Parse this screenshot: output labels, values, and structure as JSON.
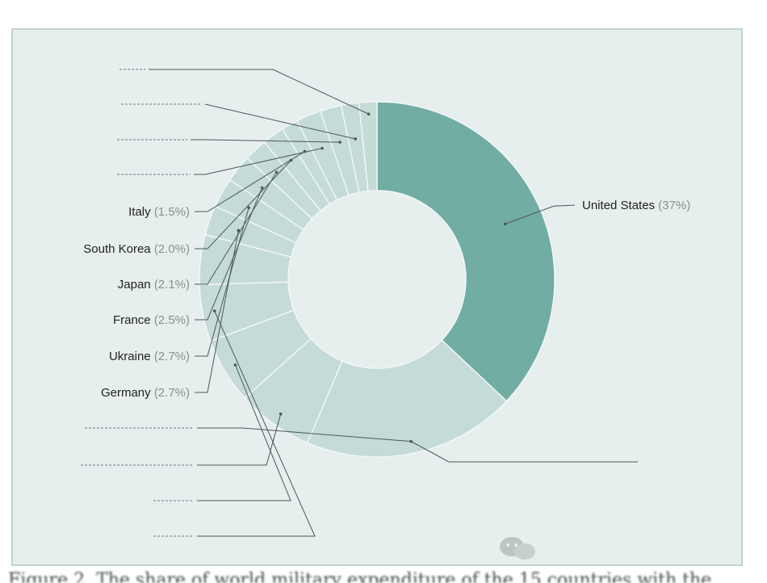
{
  "colors": {
    "primary_slice": "#71ada3",
    "other_slice": "#c5dbd8",
    "panel": "#e6eeee",
    "separator": "#f3f7f7"
  },
  "chart_data": {
    "type": "pie",
    "donut": true,
    "labeled_slices": [
      {
        "label": "United States",
        "value": 37,
        "pct_text": "(37%)"
      },
      {
        "label": "Italy",
        "value": 1.5,
        "pct_text": "(1.5%)"
      },
      {
        "label": "South Korea",
        "value": 2.0,
        "pct_text": "(2.0%)"
      },
      {
        "label": "Japan",
        "value": 2.1,
        "pct_text": "(2.1%)"
      },
      {
        "label": "France",
        "value": 2.5,
        "pct_text": "(2.5%)"
      },
      {
        "label": "Ukraine",
        "value": 2.7,
        "pct_text": "(2.7%)"
      },
      {
        "label": "Germany",
        "value": 2.7,
        "pct_text": "(2.7%)"
      }
    ],
    "unreadable_slice_count": 9
  },
  "caption": {
    "text": "Figure 2. The share of world military expenditure of the 15 countries with the"
  },
  "watermark": {
    "icon": "wechat-icon"
  }
}
